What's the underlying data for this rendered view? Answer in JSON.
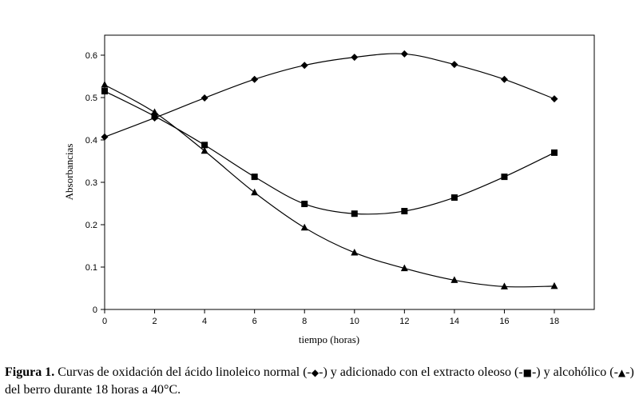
{
  "chart_data": {
    "type": "line",
    "xlabel": "tiempo (horas)",
    "ylabel": "Absorbancias",
    "xlim": [
      0,
      18
    ],
    "ylim": [
      0,
      0.6
    ],
    "x_ticks": [
      "0",
      "2",
      "4",
      "6",
      "8",
      "10",
      "12",
      "14",
      "16",
      "18"
    ],
    "y_ticks": [
      "0",
      "0.1",
      "0.2",
      "0.3",
      "0.4",
      "0.5",
      "0.6"
    ],
    "grid": false,
    "x": [
      0,
      2,
      4,
      6,
      8,
      10,
      12,
      14,
      16,
      18
    ],
    "series": [
      {
        "marker": "diamond",
        "values": [
          0.407,
          0.452,
          0.499,
          0.543,
          0.576,
          0.595,
          0.603,
          0.578,
          0.543,
          0.497
        ]
      },
      {
        "marker": "square",
        "values": [
          0.515,
          0.456,
          0.388,
          0.313,
          0.249,
          0.226,
          0.232,
          0.264,
          0.313,
          0.37
        ]
      },
      {
        "marker": "triangle",
        "values": [
          0.53,
          0.465,
          0.374,
          0.276,
          0.193,
          0.134,
          0.097,
          0.069,
          0.054,
          0.055
        ]
      }
    ]
  },
  "caption": {
    "label": "Figura 1.",
    "part1": " Curvas de oxidación del ácido linoleico normal (-",
    "diamond_symbol": "◆",
    "part2": "-) y adicionado con el extracto oleoso (-",
    "square_symbol": "■",
    "part3": "-) y alcohólico (-",
    "triangle_symbol": "▲",
    "part4": "-) del berro durante 18 horas a 40°C."
  }
}
